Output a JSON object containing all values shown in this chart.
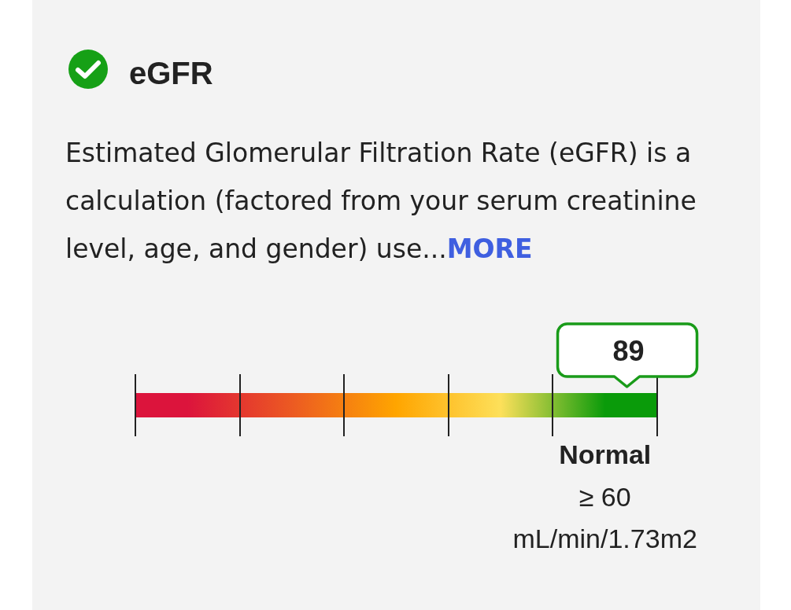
{
  "chart_data": {
    "type": "other",
    "title": "eGFR",
    "subtitle": "Estimated Glomerular Filtration Rate (eGFR) is a calculation (factored from your serum creatinine level, age, and gender) use...",
    "annotations": [
      "MORE",
      {
        "text": "≥ 60",
        "x": "Normal"
      },
      {
        "text": "mL/min/1.73m2",
        "x": "Normal"
      }
    ],
    "categories": [
      null,
      null,
      null,
      null,
      "Normal"
    ],
    "colors": [
      "#dc143c",
      "#ec5a22",
      "#ffa500",
      "#fde05a",
      "#0a9b0a"
    ],
    "values": [
      null,
      null,
      null,
      null,
      89
    ],
    "data_labels": true,
    "color": "#199b19"
  }
}
